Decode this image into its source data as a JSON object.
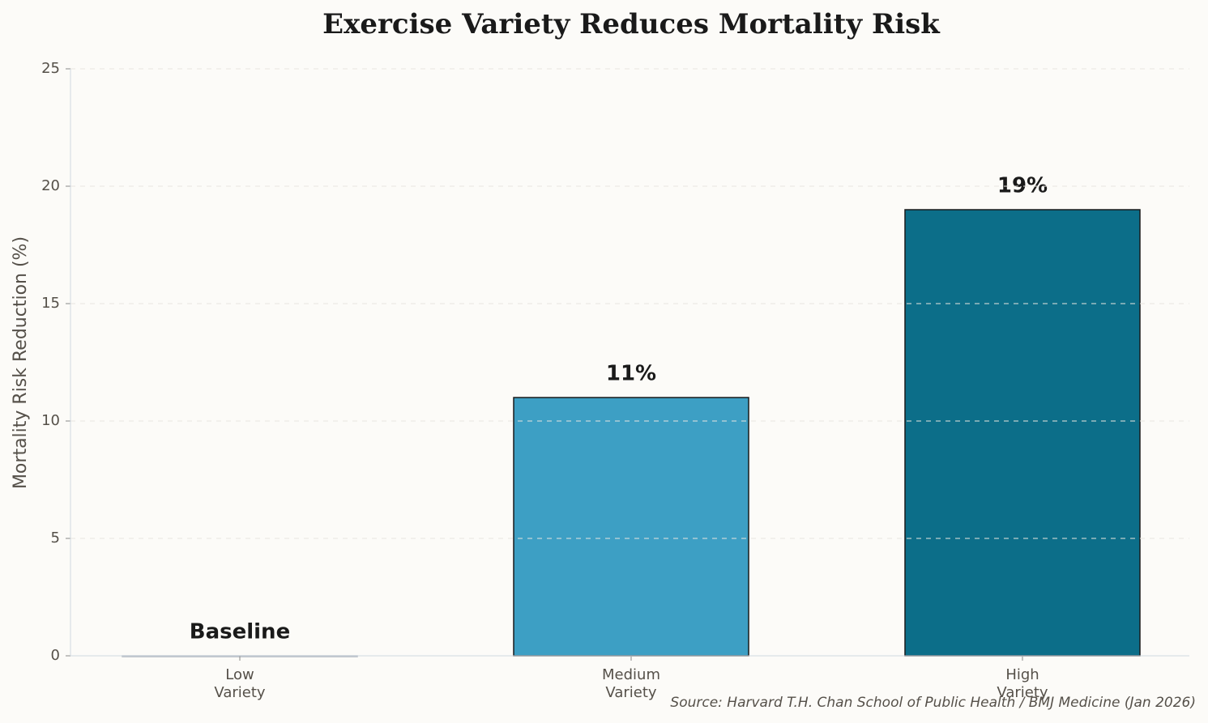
{
  "chart_data": {
    "type": "bar",
    "title": "Exercise Variety Reduces Mortality Risk",
    "y_label": "Mortality Risk Reduction (%)",
    "categories": [
      "Low\nVariety",
      "Medium\nVariety",
      "High\nVariety"
    ],
    "values": [
      0,
      11,
      19
    ],
    "value_labels": [
      "Baseline",
      "11%",
      "19%"
    ],
    "colors": [
      "#b0b8c0",
      "#3d9fc4",
      "#0c6e89"
    ],
    "ylim": [
      0,
      25
    ],
    "yticks": [
      0,
      5,
      10,
      15,
      20,
      25
    ],
    "grid": true,
    "source": "Source: Harvard T.H. Chan School of Public Health / BMJ Medicine (Jan 2026)"
  }
}
